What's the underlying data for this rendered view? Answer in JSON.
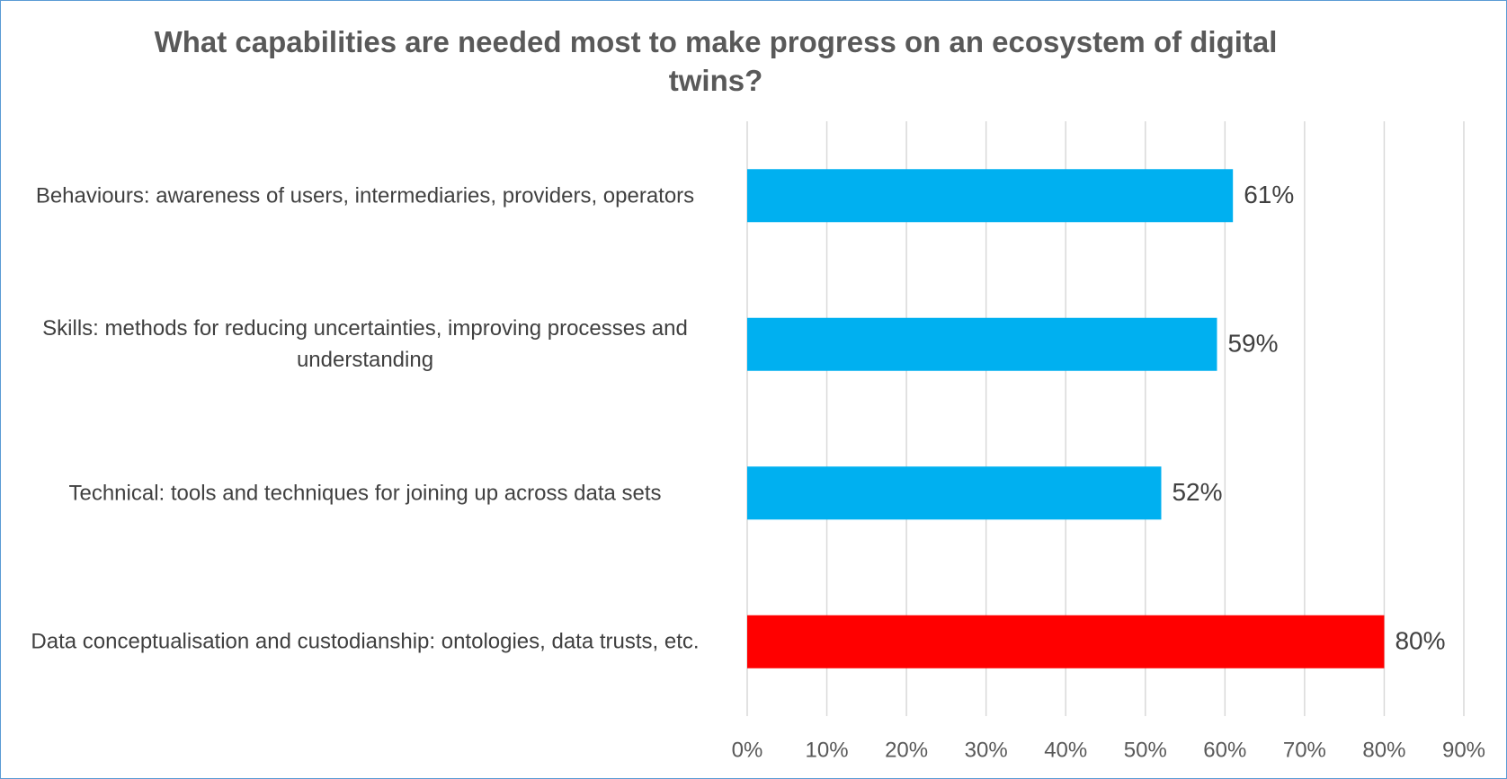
{
  "chart_data": {
    "type": "bar",
    "orientation": "horizontal",
    "title": "What capabilities are needed most to make progress on an ecosystem of digital twins?",
    "categories": [
      "Behaviours: awareness of users, intermediaries, providers, operators",
      "Skills: methods for reducing uncertainties, improving processes and understanding",
      "Technical: tools and techniques for joining up across data sets",
      "Data conceptualisation and custodianship: ontologies, data trusts, etc."
    ],
    "values": [
      61,
      59,
      52,
      80
    ],
    "value_labels": [
      "61%",
      "59%",
      "52%",
      "80%"
    ],
    "colors": [
      "#00b0f0",
      "#00b0f0",
      "#00b0f0",
      "#ff0000"
    ],
    "xlim": [
      0,
      90
    ],
    "xticks": [
      {
        "value": 0,
        "label": "0%"
      },
      {
        "value": 10,
        "label": "10%"
      },
      {
        "value": 20,
        "label": "20%"
      },
      {
        "value": 30,
        "label": "30%"
      },
      {
        "value": 40,
        "label": "40%"
      },
      {
        "value": 50,
        "label": "50%"
      },
      {
        "value": 60,
        "label": "60%"
      },
      {
        "value": 70,
        "label": "70%"
      },
      {
        "value": 80,
        "label": "80%"
      },
      {
        "value": 90,
        "label": "90%"
      }
    ],
    "grid": true
  }
}
